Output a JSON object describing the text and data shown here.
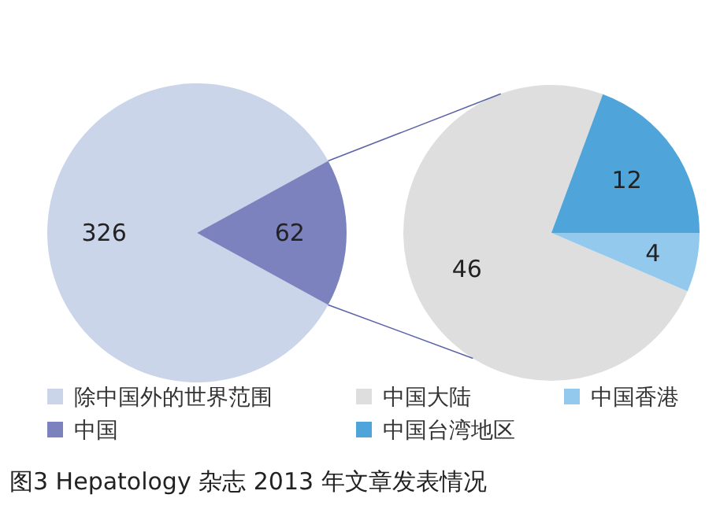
{
  "chart_data": [
    {
      "type": "pie",
      "title": "图3 Hepatology 杂志 2013 年文章发表情况",
      "categories": [
        "除中国外的世界范围",
        "中国"
      ],
      "values": [
        326,
        62
      ],
      "colors": [
        "#cbd5ea",
        "#7c82be"
      ],
      "data_labels": true,
      "legend": "bottom"
    },
    {
      "type": "pie",
      "categories": [
        "中国大陆",
        "中国台湾地区",
        "中国香港"
      ],
      "values": [
        46,
        12,
        4
      ],
      "colors": [
        "#dedede",
        "#4fa4da",
        "#94c9ee"
      ],
      "data_labels": true,
      "legend": "bottom"
    }
  ]
}
